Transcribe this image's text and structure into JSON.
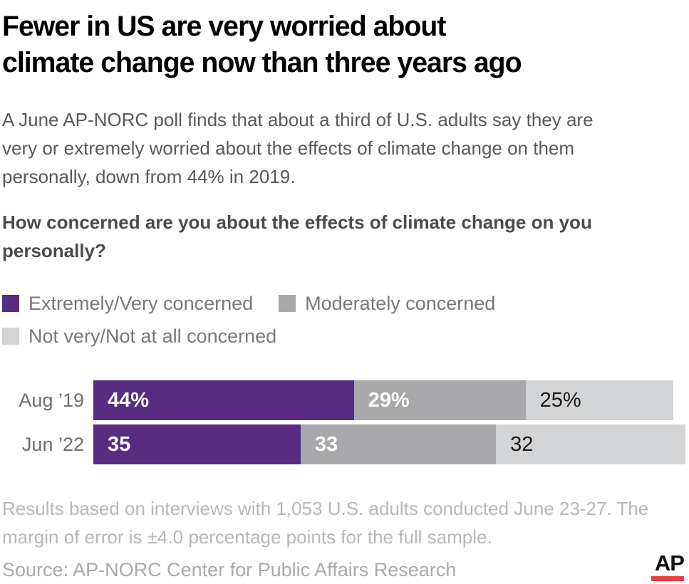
{
  "title": "Fewer in US are very worried about\nclimate change now than three years ago",
  "subtitle": "A June AP-NORC poll finds that about a third of U.S. adults say they are\nvery or extremely worried about the effects of climate change on them\npersonally, down from 44% in 2019.",
  "question": "How concerned are you about the effects of climate change on you\npersonally?",
  "footnote": "Results based on interviews with 1,053 U.S. adults conducted June 23-27. The\nmargin of error is ±4.0 percentage points for the full sample.",
  "source": "Source: AP-NORC Center for Public Affairs Research",
  "ap_logo_text": "AP",
  "colors": {
    "series_purple": "#582c81",
    "series_gray": "#a8a8ab",
    "series_light_gray": "#d3d4d5",
    "ap_logo_red": "#ef3e42",
    "title_text": "#000000",
    "body_text": "#58595b",
    "muted_text": "#b7b8ba"
  },
  "chart_data": {
    "type": "bar",
    "subtype": "horizontal-stacked",
    "title": "How concerned are you about the effects of climate change on you personally?",
    "categories": [
      "Aug ’19",
      "Jun ’22"
    ],
    "series": [
      {
        "name": "Extremely/Very concerned",
        "color": "#582c81",
        "values": [
          44,
          35
        ],
        "labels": [
          "44%",
          "35"
        ],
        "label_color": "#ffffff",
        "label_bold": true
      },
      {
        "name": "Moderately concerned",
        "color": "#a8a8ab",
        "values": [
          29,
          33
        ],
        "labels": [
          "29%",
          "33"
        ],
        "label_color": "#ffffff",
        "label_bold": true
      },
      {
        "name": "Not very/Not at all concerned",
        "color": "#d3d4d5",
        "values": [
          25,
          32
        ],
        "labels": [
          "25%",
          "32"
        ],
        "label_color": "#1a1a1a",
        "label_bold": false
      }
    ],
    "x_max": 100,
    "xlabel": "",
    "ylabel": "",
    "grid": false,
    "legend_position": "top",
    "value_labels": "inside-left"
  }
}
